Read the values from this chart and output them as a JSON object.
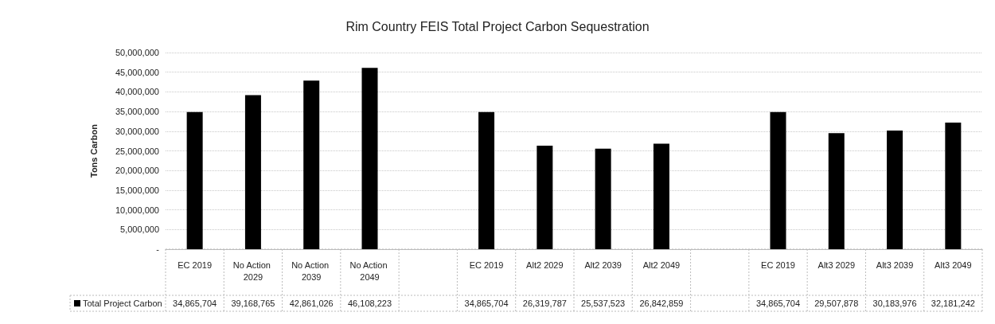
{
  "chart_data": {
    "type": "bar",
    "title": "Rim Country FEIS Total Project Carbon Sequestration",
    "ylabel": "Tons Carbon",
    "categories": [
      "EC 2019",
      "No Action 2029",
      "No Action 2039",
      "No Action 2049",
      null,
      "EC 2019",
      "Alt2 2029",
      "Alt2 2039",
      "Alt2 2049",
      null,
      "EC 2019",
      "Alt3 2029",
      "Alt3 2039",
      "Alt3 2049"
    ],
    "series": [
      {
        "name": "Total Project Carbon",
        "color": "#000000",
        "values": [
          34865704,
          39168765,
          42861026,
          46108223,
          null,
          34865704,
          26319787,
          25537523,
          26842859,
          null,
          34865704,
          29507878,
          30183976,
          32181242
        ],
        "value_labels": [
          "34,865,704",
          "39,168,765",
          "42,861,026",
          "46,108,223",
          null,
          "34,865,704",
          "26,319,787",
          "25,537,523",
          "26,842,859",
          null,
          "34,865,704",
          "29,507,878",
          "30,183,976",
          "32,181,242"
        ]
      }
    ],
    "ylim": [
      0,
      50000000
    ],
    "yticks": [
      {
        "value": 0,
        "label": "-"
      },
      {
        "value": 5000000,
        "label": "5,000,000"
      },
      {
        "value": 10000000,
        "label": "10,000,000"
      },
      {
        "value": 15000000,
        "label": "15,000,000"
      },
      {
        "value": 20000000,
        "label": "20,000,000"
      },
      {
        "value": 25000000,
        "label": "25,000,000"
      },
      {
        "value": 30000000,
        "label": "30,000,000"
      },
      {
        "value": 35000000,
        "label": "35,000,000"
      },
      {
        "value": 40000000,
        "label": "40,000,000"
      },
      {
        "value": 45000000,
        "label": "45,000,000"
      },
      {
        "value": 50000000,
        "label": "50,000,000"
      }
    ],
    "grid": "y"
  }
}
